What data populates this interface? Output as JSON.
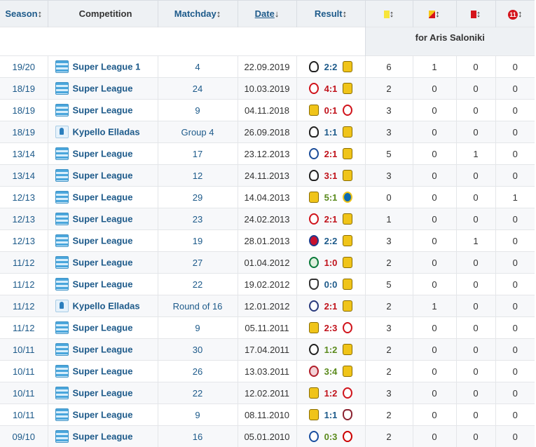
{
  "top_right_label": "for Aris Saloniki",
  "headers": {
    "season": "Season",
    "competition": "Competition",
    "matchday": "Matchday",
    "date": "Date",
    "result": "Result",
    "sort_arrows": "↕",
    "date_arrow": "↓",
    "penalty_label": "11"
  },
  "rows": [
    {
      "season": "19/20",
      "comp": "Super League 1",
      "comp_type": "league",
      "matchday": "4",
      "date": "22.09.2019",
      "home": "paok",
      "score": "2:2",
      "outcome": "draw",
      "away": "aris",
      "y": "6",
      "yr": "1",
      "r": "0",
      "p": "0"
    },
    {
      "season": "18/19",
      "comp": "Super League",
      "comp_type": "league",
      "matchday": "24",
      "date": "10.03.2019",
      "home": "olympiakos",
      "score": "4:1",
      "outcome": "loss",
      "away": "aris",
      "y": "2",
      "yr": "0",
      "r": "0",
      "p": "0"
    },
    {
      "season": "18/19",
      "comp": "Super League",
      "comp_type": "league",
      "matchday": "9",
      "date": "04.11.2018",
      "home": "aris",
      "score": "0:1",
      "outcome": "loss",
      "away": "olympiakos",
      "y": "3",
      "yr": "0",
      "r": "0",
      "p": "0"
    },
    {
      "season": "18/19",
      "comp": "Kypello Elladas",
      "comp_type": "cup",
      "matchday": "Group 4",
      "date": "26.09.2018",
      "home": "paok",
      "score": "1:1",
      "outcome": "draw",
      "away": "aris",
      "y": "3",
      "yr": "0",
      "r": "0",
      "p": "0"
    },
    {
      "season": "13/14",
      "comp": "Super League",
      "comp_type": "league",
      "matchday": "17",
      "date": "23.12.2013",
      "home": "pas",
      "score": "2:1",
      "outcome": "loss",
      "away": "aris",
      "y": "5",
      "yr": "0",
      "r": "1",
      "p": "0"
    },
    {
      "season": "13/14",
      "comp": "Super League",
      "comp_type": "league",
      "matchday": "12",
      "date": "24.11.2013",
      "home": "paok",
      "score": "3:1",
      "outcome": "loss",
      "away": "aris",
      "y": "3",
      "yr": "0",
      "r": "0",
      "p": "0"
    },
    {
      "season": "12/13",
      "comp": "Super League",
      "comp_type": "league",
      "matchday": "29",
      "date": "14.04.2013",
      "home": "aris",
      "score": "5:1",
      "outcome": "win",
      "away": "ergotelis",
      "y": "0",
      "yr": "0",
      "r": "0",
      "p": "1"
    },
    {
      "season": "12/13",
      "comp": "Super League",
      "comp_type": "league",
      "matchday": "23",
      "date": "24.02.2013",
      "home": "olympiakos",
      "score": "2:1",
      "outcome": "loss",
      "away": "aris",
      "y": "1",
      "yr": "0",
      "r": "0",
      "p": "0"
    },
    {
      "season": "12/13",
      "comp": "Super League",
      "comp_type": "league",
      "matchday": "19",
      "date": "28.01.2013",
      "home": "panionios2",
      "score": "2:2",
      "outcome": "draw",
      "away": "aris",
      "y": "3",
      "yr": "0",
      "r": "1",
      "p": "0"
    },
    {
      "season": "11/12",
      "comp": "Super League",
      "comp_type": "league",
      "matchday": "27",
      "date": "01.04.2012",
      "home": "panathinaikos",
      "score": "1:0",
      "outcome": "loss",
      "away": "aris",
      "y": "2",
      "yr": "0",
      "r": "0",
      "p": "0"
    },
    {
      "season": "11/12",
      "comp": "Super League",
      "comp_type": "league",
      "matchday": "22",
      "date": "19.02.2012",
      "home": "ofi",
      "score": "0:0",
      "outcome": "draw",
      "away": "aris",
      "y": "5",
      "yr": "0",
      "r": "0",
      "p": "0"
    },
    {
      "season": "11/12",
      "comp": "Kypello Elladas",
      "comp_type": "cup",
      "matchday": "Round of 16",
      "date": "12.01.2012",
      "home": "atromitos",
      "score": "2:1",
      "outcome": "loss",
      "away": "aris",
      "y": "2",
      "yr": "1",
      "r": "0",
      "p": "0"
    },
    {
      "season": "11/12",
      "comp": "Super League",
      "comp_type": "league",
      "matchday": "9",
      "date": "05.11.2011",
      "home": "aris",
      "score": "2:3",
      "outcome": "loss",
      "away": "olympiakos",
      "y": "3",
      "yr": "0",
      "r": "0",
      "p": "0"
    },
    {
      "season": "10/11",
      "comp": "Super League",
      "comp_type": "league",
      "matchday": "30",
      "date": "17.04.2011",
      "home": "kerkyra",
      "score": "1:2",
      "outcome": "win",
      "away": "aris",
      "y": "2",
      "yr": "0",
      "r": "0",
      "p": "0"
    },
    {
      "season": "10/11",
      "comp": "Super League",
      "comp_type": "league",
      "matchday": "26",
      "date": "13.03.2011",
      "home": "panionios",
      "score": "3:4",
      "outcome": "win",
      "away": "aris",
      "y": "2",
      "yr": "0",
      "r": "0",
      "p": "0"
    },
    {
      "season": "10/11",
      "comp": "Super League",
      "comp_type": "league",
      "matchday": "22",
      "date": "12.02.2011",
      "home": "aris",
      "score": "1:2",
      "outcome": "loss",
      "away": "olympiakos",
      "y": "3",
      "yr": "0",
      "r": "0",
      "p": "0"
    },
    {
      "season": "10/11",
      "comp": "Super League",
      "comp_type": "league",
      "matchday": "9",
      "date": "08.11.2010",
      "home": "aris",
      "score": "1:1",
      "outcome": "draw",
      "away": "larissa",
      "y": "2",
      "yr": "0",
      "r": "0",
      "p": "0"
    },
    {
      "season": "09/10",
      "comp": "Super League",
      "comp_type": "league",
      "matchday": "16",
      "date": "05.01.2010",
      "home": "asteras",
      "score": "0:3",
      "outcome": "win",
      "away": "iraklis",
      "y": "2",
      "yr": "0",
      "r": "0",
      "p": "0"
    }
  ]
}
